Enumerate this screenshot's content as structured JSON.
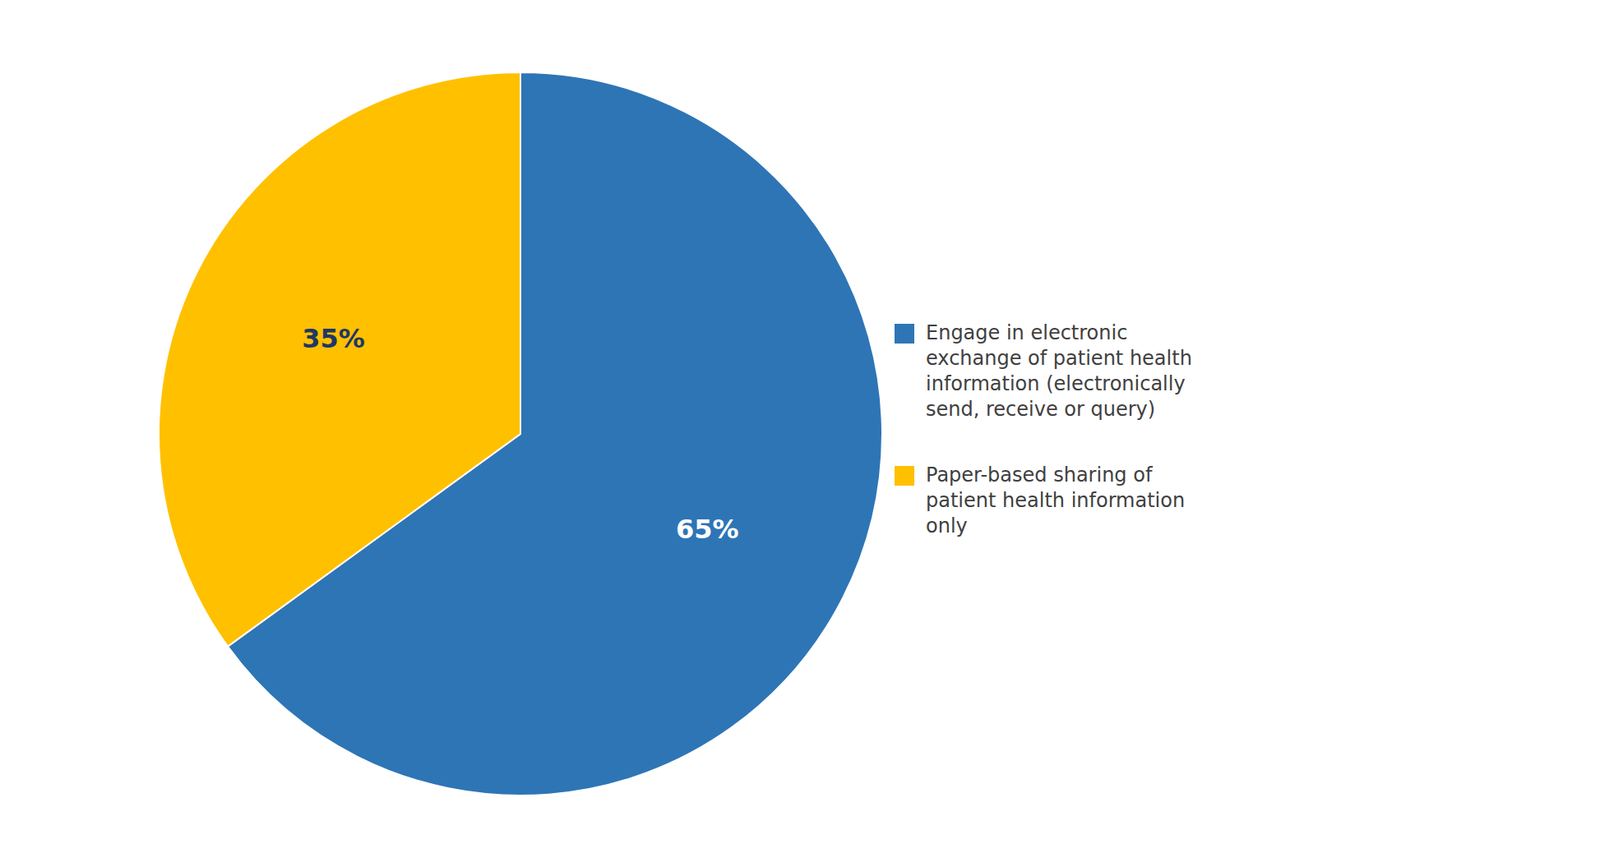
{
  "chart_data": {
    "type": "pie",
    "categories": [
      "Engage in electronic\nexchange of patient health\ninformation  (electronically\nsend, receive or query)",
      "Paper-based sharing of\npatient health information\nonly"
    ],
    "values": [
      65,
      35
    ],
    "value_labels": [
      "65%",
      "35%"
    ],
    "colors": [
      "#2E75B6",
      "#FFC000"
    ],
    "data_labels": true,
    "legend": "right"
  }
}
